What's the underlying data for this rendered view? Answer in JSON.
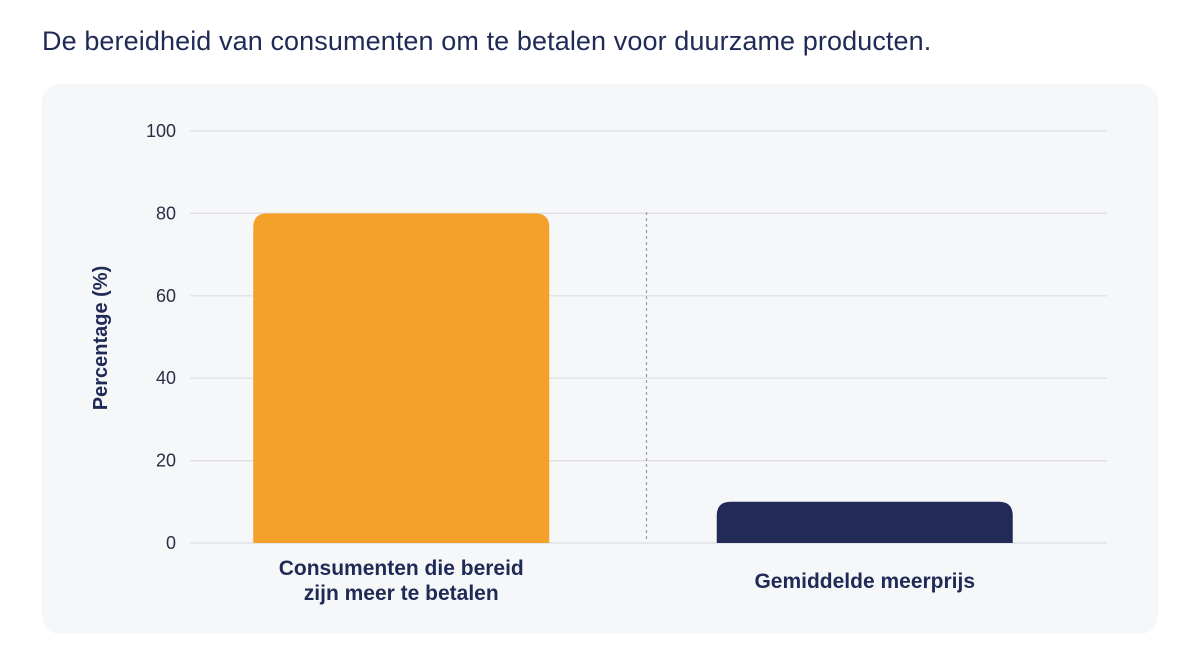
{
  "chart_data": {
    "type": "bar",
    "title": "De bereidheid van consumenten om te betalen voor duurzame producten.",
    "xlabel": "",
    "ylabel": "Percentage (%)",
    "ylim": [
      0,
      100
    ],
    "yticks": [
      "0",
      "20",
      "40",
      "60",
      "80",
      "100"
    ],
    "grid": true,
    "categories": [
      [
        "Consumenten die bereid",
        "zijn meer te betalen"
      ],
      [
        "Gemiddelde meerprijs"
      ]
    ],
    "values": [
      80,
      10
    ],
    "colors": [
      "#f4a12a",
      "#222b57"
    ]
  },
  "colors": {
    "title": "#1f2a56",
    "background_card": "#f6f7f9",
    "gridline": "#dcdde2",
    "divider": "#9a9ca6"
  }
}
